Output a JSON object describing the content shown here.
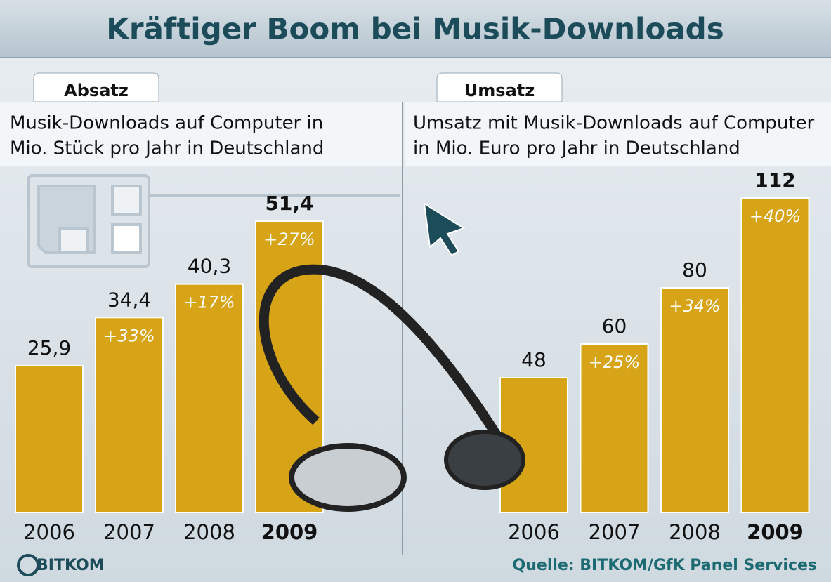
{
  "title": "Kräftiger Boom bei Musik-Downloads",
  "source": "Quelle: BITKOM/GfK Panel Services",
  "logo": "BITKOM",
  "chart_data": [
    {
      "type": "bar",
      "tab": "Absatz",
      "subtitle": [
        "Musik-Downloads auf Computer in",
        "Mio. Stück pro Jahr in Deutschland"
      ],
      "categories": [
        "2006",
        "2007",
        "2008",
        "2009"
      ],
      "values": [
        25.9,
        34.4,
        40.3,
        51.4
      ],
      "value_labels": [
        "25,9",
        "34,4",
        "40,3",
        "51,4"
      ],
      "change_labels": [
        null,
        "+33%",
        "+17%",
        "+27%"
      ],
      "color": "#d6a416",
      "ylim": [
        0,
        55
      ]
    },
    {
      "type": "bar",
      "tab": "Umsatz",
      "subtitle": [
        "Umsatz mit Musik-Downloads auf Computer",
        "in Mio. Euro pro Jahr in Deutschland"
      ],
      "categories": [
        "2006",
        "2007",
        "2008",
        "2009"
      ],
      "values": [
        48,
        60,
        80,
        112
      ],
      "change_labels": [
        null,
        "+25%",
        "+34%",
        "+40%"
      ],
      "color": "#d6a416",
      "ylim": [
        0,
        120
      ]
    }
  ]
}
